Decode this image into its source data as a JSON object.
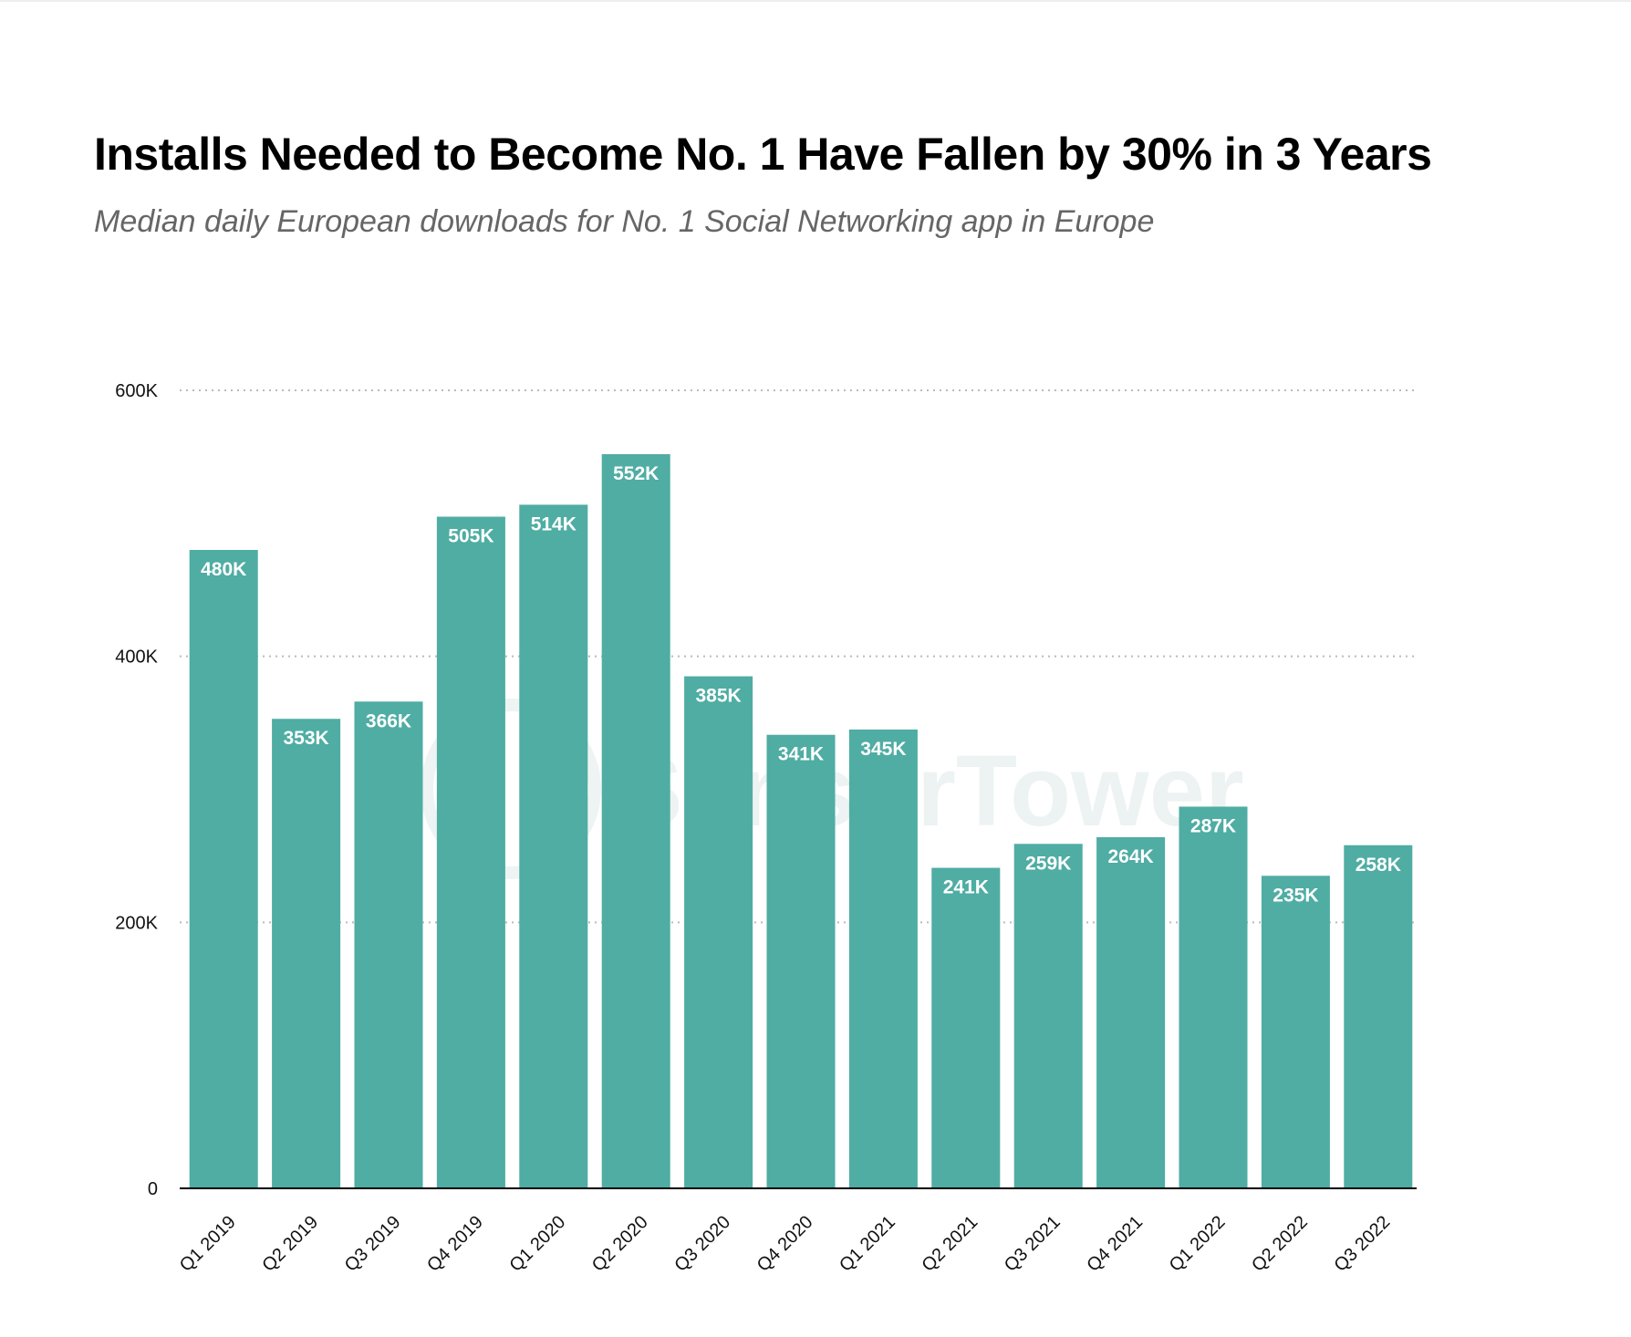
{
  "chart_data": {
    "type": "bar",
    "title": "Installs Needed to Become No. 1 Have Fallen by 30% in 3 Years",
    "subtitle": "Median daily European downloads for No. 1 Social Networking app in Europe",
    "xlabel": "",
    "ylabel": "",
    "ylim": [
      0,
      600000
    ],
    "yticks": [
      0,
      200000,
      400000,
      600000
    ],
    "ytick_labels": [
      "0",
      "200K",
      "400K",
      "600K"
    ],
    "grid": true,
    "categories": [
      "Q1 2019",
      "Q2 2019",
      "Q3 2019",
      "Q4 2019",
      "Q1 2020",
      "Q2 2020",
      "Q3 2020",
      "Q4 2020",
      "Q1 2021",
      "Q2 2021",
      "Q3 2021",
      "Q4 2021",
      "Q1 2022",
      "Q2 2022",
      "Q3 2022"
    ],
    "values": [
      480000,
      353000,
      366000,
      505000,
      514000,
      552000,
      385000,
      341000,
      345000,
      241000,
      259000,
      264000,
      287000,
      235000,
      258000
    ],
    "data_labels": [
      "480K",
      "353K",
      "366K",
      "505K",
      "514K",
      "552K",
      "385K",
      "341K",
      "345K",
      "241K",
      "259K",
      "264K",
      "287K",
      "235K",
      "258K"
    ],
    "bar_color": "#4fada3",
    "watermark": "SensorTower"
  }
}
